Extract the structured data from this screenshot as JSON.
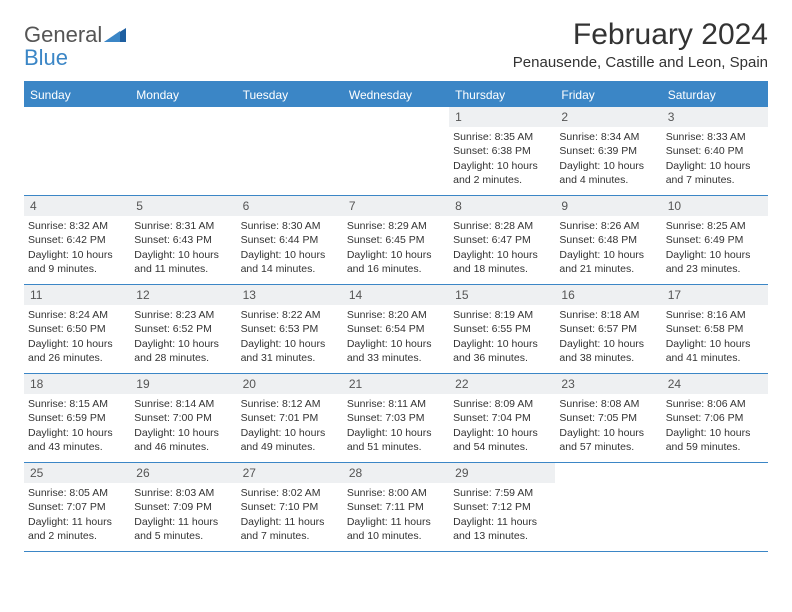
{
  "logo": {
    "part1": "General",
    "part2": "Blue",
    "color_gray": "#6a6a6a",
    "color_blue": "#3b86c6"
  },
  "title": "February 2024",
  "location": "Penausende, Castille and Leon, Spain",
  "header_bg": "#3b86c6",
  "band_bg": "#eef0f2",
  "day_names": [
    "Sunday",
    "Monday",
    "Tuesday",
    "Wednesday",
    "Thursday",
    "Friday",
    "Saturday"
  ],
  "weeks": [
    [
      null,
      null,
      null,
      null,
      {
        "n": "1",
        "sr": "Sunrise: 8:35 AM",
        "ss": "Sunset: 6:38 PM",
        "d1": "Daylight: 10 hours",
        "d2": "and 2 minutes."
      },
      {
        "n": "2",
        "sr": "Sunrise: 8:34 AM",
        "ss": "Sunset: 6:39 PM",
        "d1": "Daylight: 10 hours",
        "d2": "and 4 minutes."
      },
      {
        "n": "3",
        "sr": "Sunrise: 8:33 AM",
        "ss": "Sunset: 6:40 PM",
        "d1": "Daylight: 10 hours",
        "d2": "and 7 minutes."
      }
    ],
    [
      {
        "n": "4",
        "sr": "Sunrise: 8:32 AM",
        "ss": "Sunset: 6:42 PM",
        "d1": "Daylight: 10 hours",
        "d2": "and 9 minutes."
      },
      {
        "n": "5",
        "sr": "Sunrise: 8:31 AM",
        "ss": "Sunset: 6:43 PM",
        "d1": "Daylight: 10 hours",
        "d2": "and 11 minutes."
      },
      {
        "n": "6",
        "sr": "Sunrise: 8:30 AM",
        "ss": "Sunset: 6:44 PM",
        "d1": "Daylight: 10 hours",
        "d2": "and 14 minutes."
      },
      {
        "n": "7",
        "sr": "Sunrise: 8:29 AM",
        "ss": "Sunset: 6:45 PM",
        "d1": "Daylight: 10 hours",
        "d2": "and 16 minutes."
      },
      {
        "n": "8",
        "sr": "Sunrise: 8:28 AM",
        "ss": "Sunset: 6:47 PM",
        "d1": "Daylight: 10 hours",
        "d2": "and 18 minutes."
      },
      {
        "n": "9",
        "sr": "Sunrise: 8:26 AM",
        "ss": "Sunset: 6:48 PM",
        "d1": "Daylight: 10 hours",
        "d2": "and 21 minutes."
      },
      {
        "n": "10",
        "sr": "Sunrise: 8:25 AM",
        "ss": "Sunset: 6:49 PM",
        "d1": "Daylight: 10 hours",
        "d2": "and 23 minutes."
      }
    ],
    [
      {
        "n": "11",
        "sr": "Sunrise: 8:24 AM",
        "ss": "Sunset: 6:50 PM",
        "d1": "Daylight: 10 hours",
        "d2": "and 26 minutes."
      },
      {
        "n": "12",
        "sr": "Sunrise: 8:23 AM",
        "ss": "Sunset: 6:52 PM",
        "d1": "Daylight: 10 hours",
        "d2": "and 28 minutes."
      },
      {
        "n": "13",
        "sr": "Sunrise: 8:22 AM",
        "ss": "Sunset: 6:53 PM",
        "d1": "Daylight: 10 hours",
        "d2": "and 31 minutes."
      },
      {
        "n": "14",
        "sr": "Sunrise: 8:20 AM",
        "ss": "Sunset: 6:54 PM",
        "d1": "Daylight: 10 hours",
        "d2": "and 33 minutes."
      },
      {
        "n": "15",
        "sr": "Sunrise: 8:19 AM",
        "ss": "Sunset: 6:55 PM",
        "d1": "Daylight: 10 hours",
        "d2": "and 36 minutes."
      },
      {
        "n": "16",
        "sr": "Sunrise: 8:18 AM",
        "ss": "Sunset: 6:57 PM",
        "d1": "Daylight: 10 hours",
        "d2": "and 38 minutes."
      },
      {
        "n": "17",
        "sr": "Sunrise: 8:16 AM",
        "ss": "Sunset: 6:58 PM",
        "d1": "Daylight: 10 hours",
        "d2": "and 41 minutes."
      }
    ],
    [
      {
        "n": "18",
        "sr": "Sunrise: 8:15 AM",
        "ss": "Sunset: 6:59 PM",
        "d1": "Daylight: 10 hours",
        "d2": "and 43 minutes."
      },
      {
        "n": "19",
        "sr": "Sunrise: 8:14 AM",
        "ss": "Sunset: 7:00 PM",
        "d1": "Daylight: 10 hours",
        "d2": "and 46 minutes."
      },
      {
        "n": "20",
        "sr": "Sunrise: 8:12 AM",
        "ss": "Sunset: 7:01 PM",
        "d1": "Daylight: 10 hours",
        "d2": "and 49 minutes."
      },
      {
        "n": "21",
        "sr": "Sunrise: 8:11 AM",
        "ss": "Sunset: 7:03 PM",
        "d1": "Daylight: 10 hours",
        "d2": "and 51 minutes."
      },
      {
        "n": "22",
        "sr": "Sunrise: 8:09 AM",
        "ss": "Sunset: 7:04 PM",
        "d1": "Daylight: 10 hours",
        "d2": "and 54 minutes."
      },
      {
        "n": "23",
        "sr": "Sunrise: 8:08 AM",
        "ss": "Sunset: 7:05 PM",
        "d1": "Daylight: 10 hours",
        "d2": "and 57 minutes."
      },
      {
        "n": "24",
        "sr": "Sunrise: 8:06 AM",
        "ss": "Sunset: 7:06 PM",
        "d1": "Daylight: 10 hours",
        "d2": "and 59 minutes."
      }
    ],
    [
      {
        "n": "25",
        "sr": "Sunrise: 8:05 AM",
        "ss": "Sunset: 7:07 PM",
        "d1": "Daylight: 11 hours",
        "d2": "and 2 minutes."
      },
      {
        "n": "26",
        "sr": "Sunrise: 8:03 AM",
        "ss": "Sunset: 7:09 PM",
        "d1": "Daylight: 11 hours",
        "d2": "and 5 minutes."
      },
      {
        "n": "27",
        "sr": "Sunrise: 8:02 AM",
        "ss": "Sunset: 7:10 PM",
        "d1": "Daylight: 11 hours",
        "d2": "and 7 minutes."
      },
      {
        "n": "28",
        "sr": "Sunrise: 8:00 AM",
        "ss": "Sunset: 7:11 PM",
        "d1": "Daylight: 11 hours",
        "d2": "and 10 minutes."
      },
      {
        "n": "29",
        "sr": "Sunrise: 7:59 AM",
        "ss": "Sunset: 7:12 PM",
        "d1": "Daylight: 11 hours",
        "d2": "and 13 minutes."
      },
      null,
      null
    ]
  ]
}
